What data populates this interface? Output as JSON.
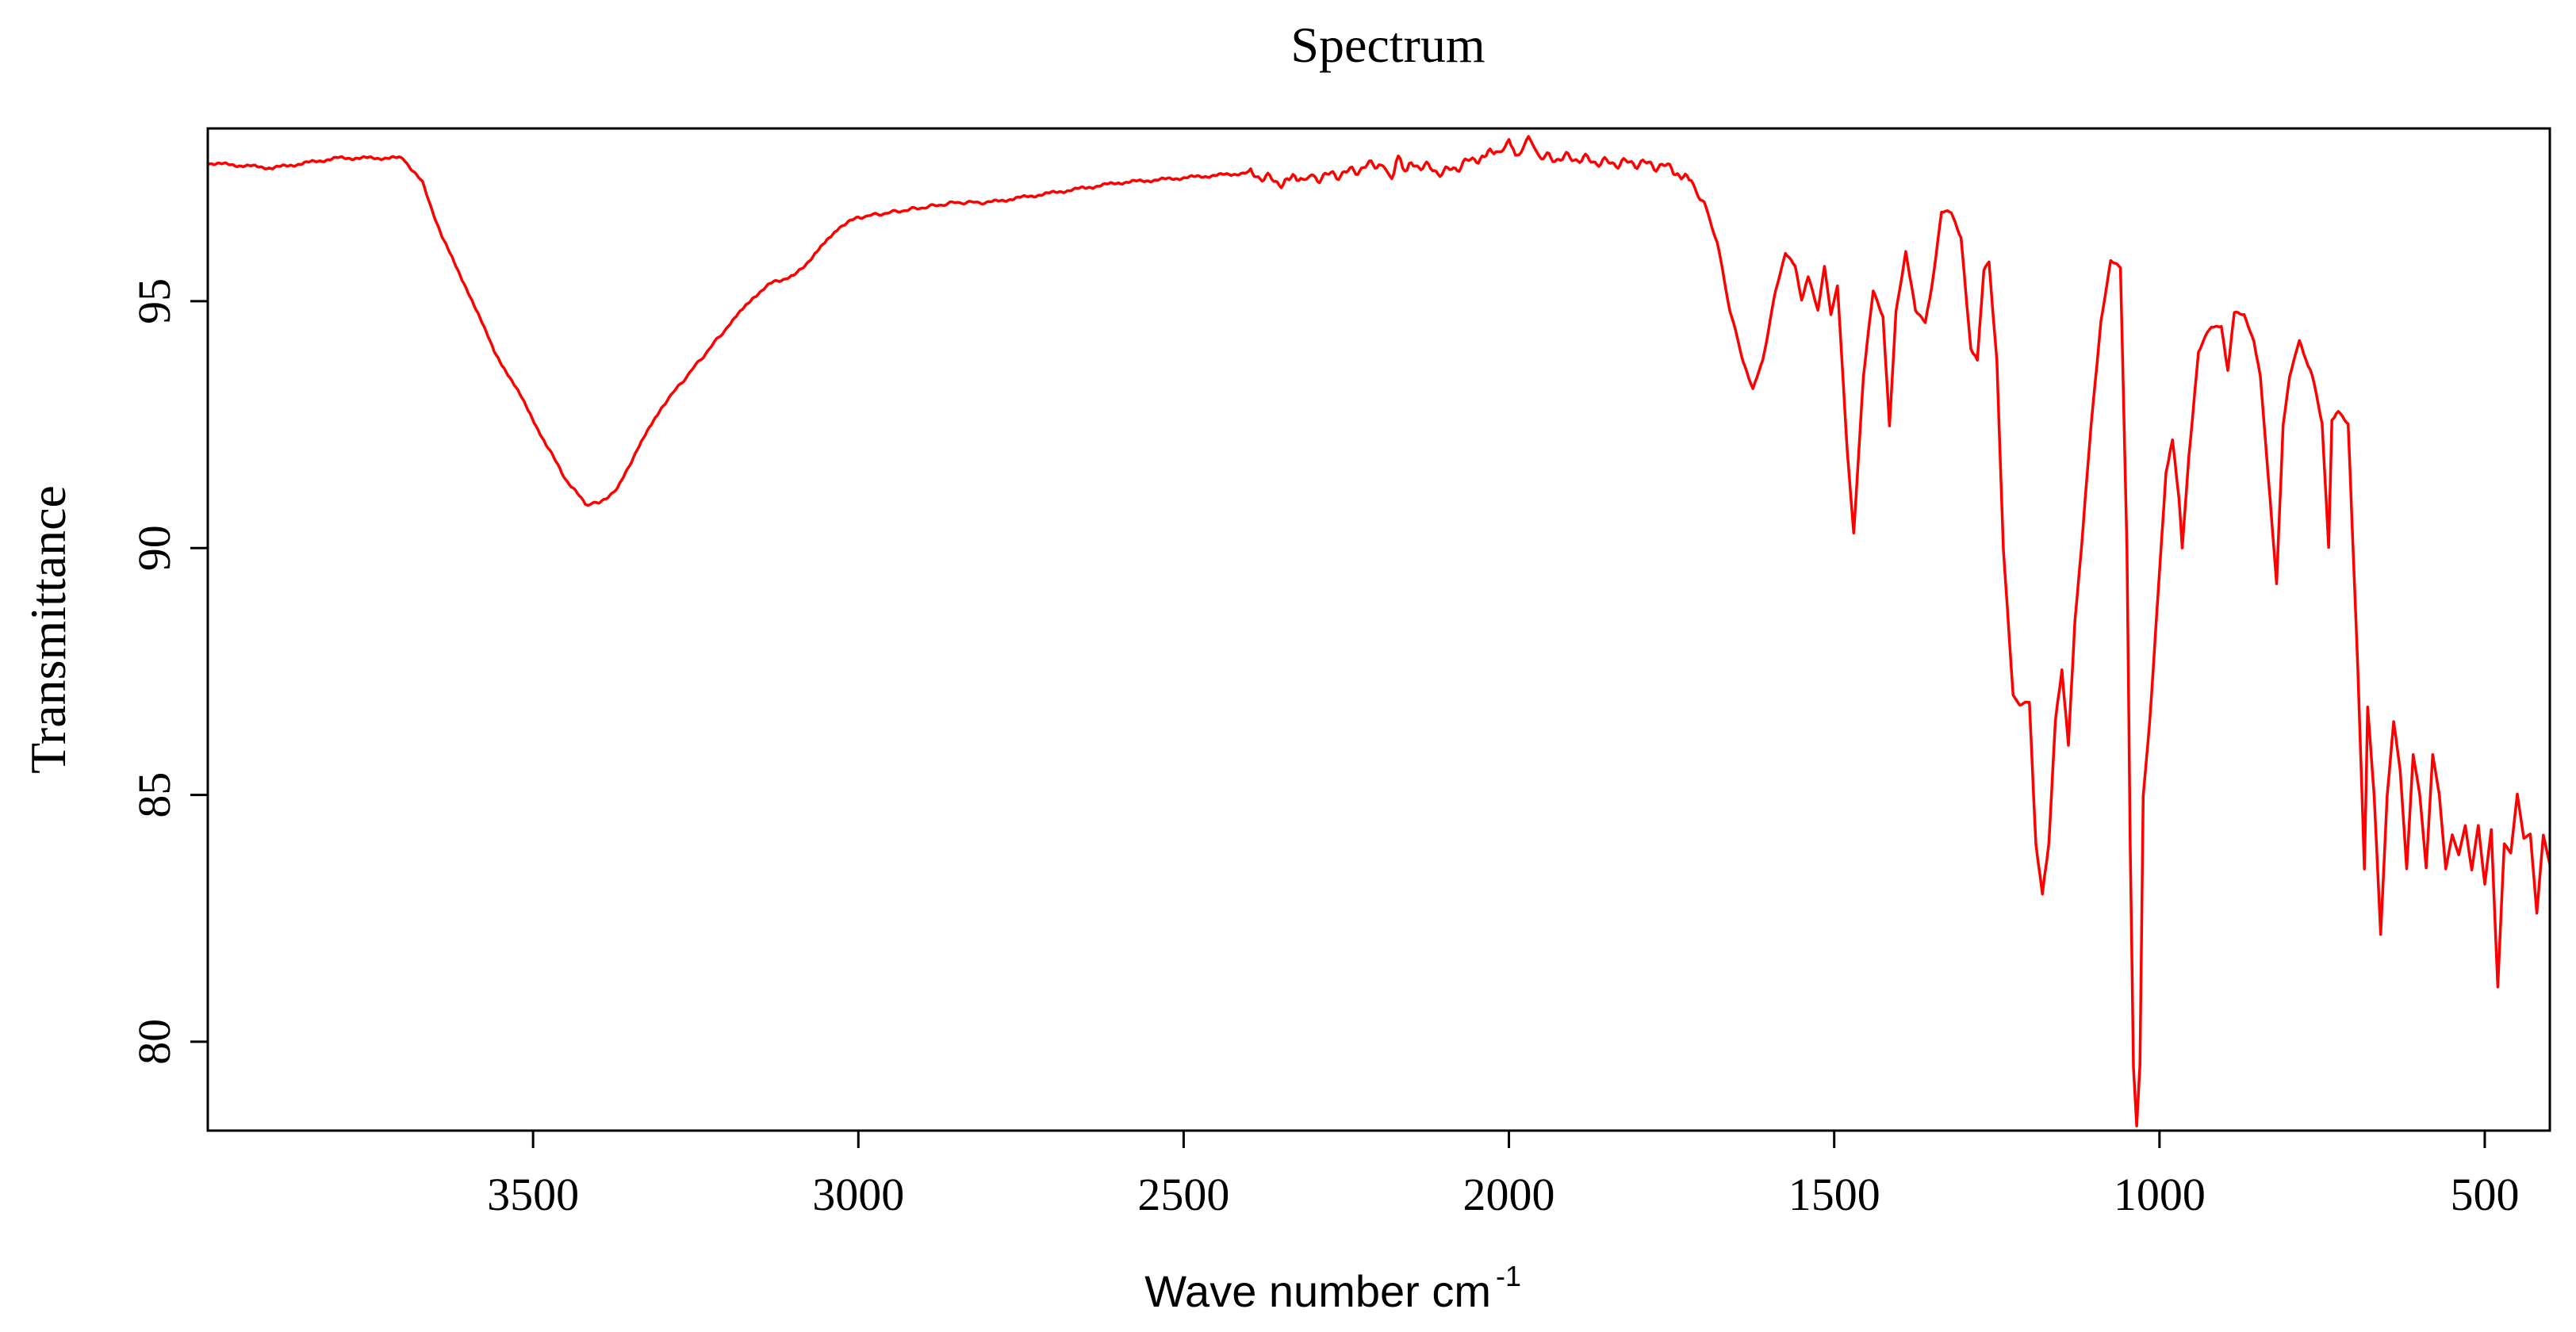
{
  "chart_data": {
    "type": "line",
    "title": "Spectrum",
    "xlabel": "Wave number cm",
    "xlabel_superscript": "-1",
    "ylabel": "Transmittance",
    "xlim": [
      4000,
      400
    ],
    "ylim": [
      78.2,
      98.5
    ],
    "grid": false,
    "legend": "none",
    "x_ticks": [
      3500,
      3000,
      2500,
      2000,
      1500,
      1000,
      500
    ],
    "y_ticks": [
      80,
      85,
      90,
      95
    ],
    "colors": {
      "line": "#ff0000",
      "axes": "#000000",
      "background": "#ffffff"
    },
    "series": [
      {
        "name": "Transmittance",
        "x": [
          4000,
          3900,
          3800,
          3700,
          3670,
          3640,
          3600,
          3560,
          3520,
          3480,
          3450,
          3420,
          3400,
          3370,
          3340,
          3300,
          3250,
          3200,
          3160,
          3130,
          3100,
          3070,
          3030,
          3000,
          2950,
          2900,
          2850,
          2800,
          2700,
          2600,
          2500,
          2400,
          2350,
          2320,
          2300,
          2250,
          2200,
          2180,
          2170,
          2160,
          2150,
          2100,
          2050,
          2020,
          2000,
          1990,
          1970,
          1950,
          1900,
          1850,
          1800,
          1750,
          1720,
          1700,
          1680,
          1660,
          1640,
          1625,
          1610,
          1590,
          1575,
          1560,
          1550,
          1540,
          1525,
          1515,
          1505,
          1495,
          1480,
          1470,
          1455,
          1440,
          1425,
          1415,
          1405,
          1390,
          1375,
          1360,
          1350,
          1335,
          1320,
          1305,
          1290,
          1280,
          1270,
          1262,
          1250,
          1240,
          1225,
          1215,
          1200,
          1190,
          1180,
          1170,
          1160,
          1150,
          1140,
          1130,
          1120,
          1105,
          1090,
          1075,
          1060,
          1050,
          1045,
          1040,
          1035,
          1030,
          1025,
          1015,
          1000,
          990,
          980,
          970,
          965,
          955,
          940,
          920,
          905,
          895,
          885,
          870,
          855,
          845,
          830,
          820,
          810,
          800,
          785,
          775,
          765,
          750,
          740,
          735,
          725,
          710,
          695,
          685,
          680,
          670,
          660,
          650,
          640,
          630,
          620,
          610,
          600,
          590,
          580,
          570,
          560,
          550,
          540,
          530,
          520,
          510,
          500,
          490,
          480,
          470,
          460,
          450,
          440,
          430,
          420,
          410,
          400
        ],
        "y": [
          97.8,
          97.7,
          97.9,
          97.9,
          97.4,
          96.3,
          95.2,
          94.0,
          93.1,
          92.1,
          91.4,
          90.9,
          90.9,
          91.2,
          92.0,
          92.9,
          93.7,
          94.5,
          95.1,
          95.4,
          95.5,
          95.9,
          96.5,
          96.7,
          96.8,
          96.9,
          97.0,
          97.0,
          97.2,
          97.4,
          97.5,
          97.6,
          97.4,
          97.5,
          97.5,
          97.6,
          97.8,
          97.5,
          98.0,
          97.6,
          97.8,
          97.6,
          97.9,
          98.0,
          98.2,
          97.9,
          98.3,
          97.9,
          97.9,
          97.8,
          97.8,
          97.7,
          97.4,
          97.0,
          96.2,
          94.8,
          93.8,
          93.2,
          93.8,
          95.2,
          96.0,
          95.7,
          95.0,
          95.5,
          94.8,
          95.7,
          94.7,
          95.3,
          92.0,
          90.3,
          93.5,
          95.2,
          94.7,
          92.5,
          94.8,
          96.0,
          94.8,
          94.6,
          95.3,
          96.8,
          96.8,
          96.3,
          94.0,
          93.8,
          95.6,
          95.8,
          93.8,
          90.0,
          87.0,
          86.8,
          86.9,
          84.0,
          83.0,
          84.0,
          86.5,
          87.5,
          86.0,
          88.5,
          90.0,
          92.5,
          94.6,
          95.8,
          95.7,
          90.0,
          84.0,
          79.5,
          78.3,
          79.5,
          85.0,
          86.5,
          89.5,
          91.5,
          92.2,
          91.0,
          90.0,
          91.8,
          94.0,
          94.5,
          94.5,
          93.6,
          94.8,
          94.7,
          94.2,
          93.5,
          91.0,
          89.3,
          92.5,
          93.5,
          94.2,
          93.8,
          93.5,
          92.5,
          90.0,
          92.6,
          92.8,
          92.5,
          87.5,
          83.5,
          86.8,
          85.0,
          82.2,
          85.0,
          86.5,
          85.5,
          83.5,
          85.8,
          85.0,
          83.5,
          85.8,
          85.0,
          83.5,
          84.2,
          83.8,
          84.4,
          83.5,
          84.4,
          83.2,
          84.3,
          81.1,
          84.0,
          83.8,
          85.0,
          84.1,
          84.2,
          82.6,
          84.2,
          83.6
        ]
      }
    ]
  }
}
